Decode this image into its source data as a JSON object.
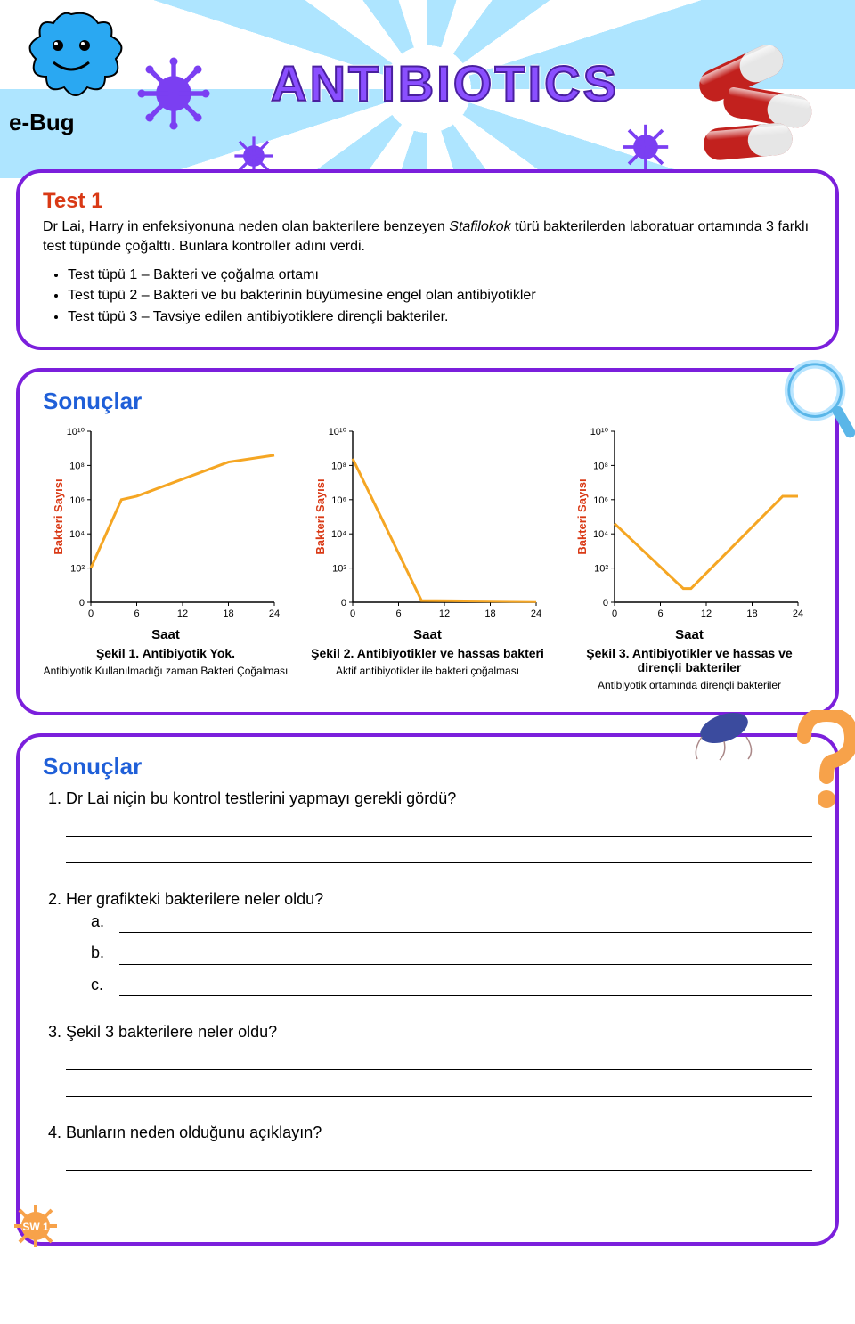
{
  "banner": {
    "title": "ANTIBIOTICS",
    "logo_text": "e-Bug"
  },
  "test": {
    "title": "Test 1",
    "intro_pre": "Dr Lai,  Harry in enfeksiyonuna neden olan bakterilere benzeyen ",
    "intro_italic": "Stafilokok",
    "intro_post": " türü bakterilerden laboratuar ortamında 3 farklı test tüpünde çoğalttı. Bunlara kontroller adını verdi.",
    "items": [
      "Test tüpü 1 – Bakteri ve çoğalma ortamı",
      "Test tüpü 2 – Bakteri ve bu bakterinin büyümesine engel olan antibiyotikler",
      "Test tüpü 3 – Tavsiye edilen antibiyotiklere dirençli bakteriler."
    ]
  },
  "results": {
    "title": "Sonuçlar",
    "y_label": "Bakteri Sayısı",
    "x_label": "Saat",
    "y_ticks": [
      "0",
      "10²",
      "10⁴",
      "10⁶",
      "10⁸",
      "10¹⁰"
    ],
    "x_ticks": [
      "0",
      "6",
      "12",
      "18",
      "24"
    ],
    "axis_color": "#000000",
    "line_color": "#f5a623",
    "line_width": 3,
    "charts": [
      {
        "points": [
          [
            0,
            1.0
          ],
          [
            4,
            3.0
          ],
          [
            6,
            3.1
          ],
          [
            18,
            4.1
          ],
          [
            24,
            4.3
          ]
        ],
        "caption": "Şekil 1. Antibiyotik Yok.",
        "sub": "Antibiyotik Kullanılmadığı zaman Bakteri Çoğalması"
      },
      {
        "points": [
          [
            0,
            4.2
          ],
          [
            9,
            0.05
          ],
          [
            24,
            0.02
          ]
        ],
        "caption": "Şekil 2. Antibiyotikler ve hassas bakteri",
        "sub": "Aktif antibiyotikler ile bakteri çoğalması"
      },
      {
        "points": [
          [
            0,
            2.3
          ],
          [
            9,
            0.4
          ],
          [
            10,
            0.4
          ],
          [
            22,
            3.1
          ],
          [
            24,
            3.1
          ]
        ],
        "caption": "Şekil 3. Antibiyotikler ve hassas ve dirençli bakteriler",
        "sub": "Antibiyotik ortamında dirençli bakteriler"
      }
    ]
  },
  "questions": {
    "title": "Sonuçlar",
    "q1": "Dr Lai niçin bu kontrol testlerini yapmayı gerekli gördü?",
    "q2": "Her grafikteki bakterilere neler oldu?",
    "q2_sub": [
      "a.",
      "b.",
      "c."
    ],
    "q3": "Şekil 3 bakterilere neler oldu?",
    "q4": "Bunların neden olduğunu açıklayın?"
  },
  "badge": "SW 1",
  "colors": {
    "border": "#7b1fdc",
    "title_red": "#d93915",
    "title_blue": "#1f5fd8",
    "highlight": "#f5a623",
    "purple": "#7b3ff2"
  }
}
